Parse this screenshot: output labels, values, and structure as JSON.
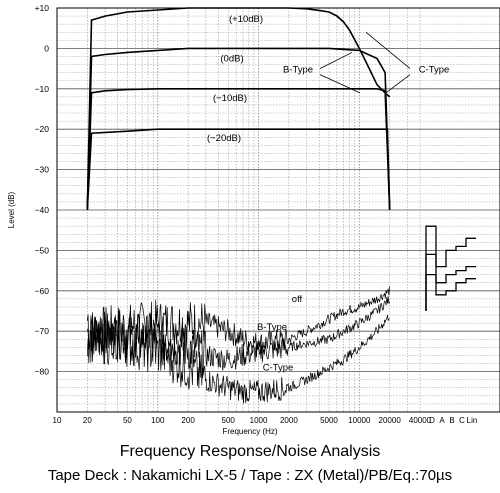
{
  "chart_data": {
    "type": "line",
    "title": "Frequency Response/Noise Analysis",
    "subtitle": "Tape Deck : Nakamichi LX-5 / Tape : ZX (Metal)/PB/Eq.:70µs",
    "xlabel": "Frequency (Hz)",
    "ylabel": "Level (dB)",
    "xscale": "log",
    "xlim": [
      10,
      40000
    ],
    "ylim": [
      -90,
      10
    ],
    "grid": true,
    "x_tick_labels": [
      "10",
      "20",
      "50",
      "100",
      "200",
      "500",
      "1000",
      "2000",
      "5000",
      "10000",
      "20000",
      "40000"
    ],
    "x_tick_values": [
      10,
      20,
      50,
      100,
      200,
      500,
      1000,
      2000,
      5000,
      10000,
      20000,
      40000
    ],
    "y_ticks": [
      10,
      0,
      -10,
      -20,
      -30,
      -40,
      -50,
      -60,
      -70,
      -80
    ],
    "y_tick_labels": [
      "+10",
      "0",
      "−10",
      "−20",
      "−30",
      "−40",
      "−50",
      "−60",
      "−70",
      "−80"
    ],
    "noise_weighting_labels": [
      "D",
      "A",
      "B",
      "C",
      "Lin"
    ],
    "series": [
      {
        "name": "(+10dB)",
        "x": [
          20,
          22,
          30,
          50,
          100,
          200,
          500,
          1000,
          2000,
          3000,
          4000,
          5000,
          6000,
          7000,
          8000,
          10000,
          12000,
          15000,
          18000,
          20000
        ],
        "y": [
          -40,
          7,
          8,
          9,
          9.5,
          10,
          10,
          10,
          10,
          9.8,
          9.4,
          9,
          8,
          6.5,
          4.5,
          0,
          -4,
          -9,
          -11,
          -12
        ]
      },
      {
        "name": "(0dB)",
        "x": [
          20,
          22,
          30,
          50,
          100,
          200,
          500,
          1000,
          2000,
          5000,
          10000,
          15000,
          18000,
          20000
        ],
        "y": [
          -40,
          -2,
          -1.5,
          -1,
          -0.5,
          0,
          0,
          0,
          0,
          0,
          -0.5,
          -2.5,
          -6,
          -40
        ]
      },
      {
        "name": "(−10dB)",
        "x": [
          20,
          22,
          30,
          50,
          100,
          200,
          500,
          1000,
          2000,
          5000,
          10000,
          15000,
          18000,
          20000
        ],
        "y": [
          -40,
          -11,
          -10.5,
          -10.2,
          -10,
          -10,
          -10,
          -10,
          -10,
          -10,
          -10,
          -10,
          -10.5,
          -40
        ]
      },
      {
        "name": "(−20dB)",
        "x": [
          20,
          22,
          50,
          100,
          1000,
          5000,
          10000,
          15000,
          19000,
          20000
        ],
        "y": [
          -40,
          -21,
          -20.5,
          -20,
          -20,
          -20,
          -20,
          -20,
          -20,
          -40
        ]
      },
      {
        "name": "off",
        "noise": true,
        "x": [
          20,
          50,
          100,
          200,
          300,
          500,
          700,
          1000,
          2000,
          3000,
          5000,
          7000,
          10000,
          15000,
          20000
        ],
        "y": [
          -70,
          -69,
          -68,
          -68,
          -68,
          -70,
          -72,
          -73,
          -72,
          -70,
          -67,
          -65,
          -64,
          -62,
          -60
        ]
      },
      {
        "name": "B-Type",
        "noise": true,
        "x": [
          20,
          50,
          100,
          200,
          300,
          500,
          700,
          1000,
          2000,
          3000,
          5000,
          7000,
          10000,
          15000,
          20000
        ],
        "y": [
          -71,
          -71,
          -72,
          -74,
          -76,
          -77,
          -76,
          -75,
          -74,
          -73,
          -72,
          -70,
          -68,
          -65,
          -62
        ]
      },
      {
        "name": "C-Type",
        "noise": true,
        "x": [
          20,
          50,
          100,
          200,
          300,
          500,
          700,
          1000,
          2000,
          3000,
          5000,
          7000,
          10000,
          15000,
          20000
        ],
        "y": [
          -72,
          -73,
          -75,
          -79,
          -82,
          -84,
          -85,
          -85,
          -84,
          -82,
          -79,
          -77,
          -74,
          -70,
          -66
        ]
      }
    ],
    "weighted_noise_bars": [
      {
        "name": "off",
        "values": [
          -44,
          -54,
          -50,
          -49,
          -47
        ]
      },
      {
        "name": "B-Type",
        "values": [
          -51,
          -58,
          -56,
          -55,
          -54
        ]
      },
      {
        "name": "C-Type",
        "values": [
          -56,
          -61,
          -60,
          -58,
          -57
        ]
      }
    ],
    "annotations": [
      "B-Type",
      "C-Type"
    ]
  }
}
